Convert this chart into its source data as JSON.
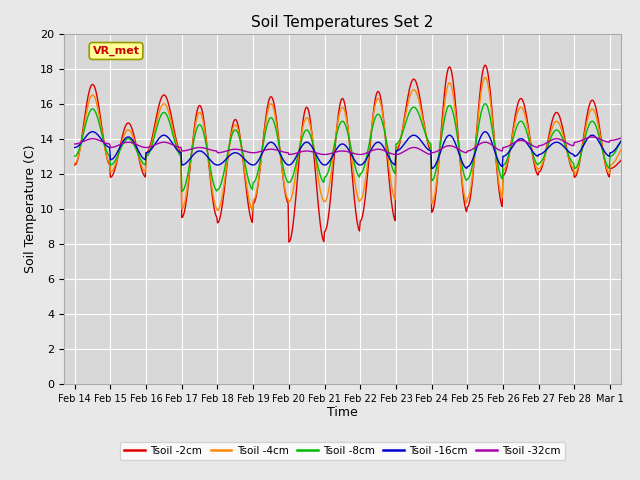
{
  "title": "Soil Temperatures Set 2",
  "xlabel": "Time",
  "ylabel": "Soil Temperature (C)",
  "ylim": [
    0,
    20
  ],
  "yticks": [
    0,
    2,
    4,
    6,
    8,
    10,
    12,
    14,
    16,
    18,
    20
  ],
  "fig_bg_color": "#e8e8e8",
  "plot_bg_color": "#d8d8d8",
  "annotation_text": "VR_met",
  "annotation_color": "#cc0000",
  "annotation_bg": "#ffff99",
  "annotation_border": "#999900",
  "colors": {
    "Tsoil -2cm": "#dd0000",
    "Tsoil -4cm": "#ff8800",
    "Tsoil -8cm": "#00bb00",
    "Tsoil -16cm": "#0000cc",
    "Tsoil -32cm": "#aa00aa"
  },
  "n_days": 16,
  "start_day": 14,
  "series": {
    "Tsoil -2cm": {
      "daily_min": [
        12.5,
        11.8,
        13.2,
        9.5,
        9.2,
        10.3,
        8.1,
        8.7,
        9.3,
        13.3,
        9.8,
        10.1,
        11.9,
        12.1,
        11.8,
        12.3
      ],
      "daily_max": [
        17.1,
        14.9,
        16.5,
        15.9,
        15.1,
        16.4,
        15.8,
        16.3,
        16.7,
        17.4,
        18.1,
        18.2,
        16.3,
        15.5,
        16.2,
        13.0
      ]
    },
    "Tsoil -4cm": {
      "daily_min": [
        12.6,
        12.1,
        13.1,
        10.0,
        9.9,
        10.5,
        10.4,
        10.4,
        10.5,
        13.5,
        10.3,
        10.6,
        12.2,
        12.3,
        12.0,
        12.5
      ],
      "daily_max": [
        16.5,
        14.5,
        16.0,
        15.5,
        14.8,
        16.0,
        15.2,
        15.8,
        16.3,
        16.8,
        17.2,
        17.5,
        15.8,
        15.0,
        15.7,
        13.8
      ]
    },
    "Tsoil -8cm": {
      "daily_min": [
        13.0,
        12.5,
        13.0,
        11.0,
        11.1,
        11.5,
        11.5,
        11.8,
        12.0,
        13.7,
        11.6,
        11.7,
        12.5,
        12.6,
        12.3,
        13.0
      ],
      "daily_max": [
        15.7,
        14.0,
        15.5,
        14.8,
        14.5,
        15.2,
        14.5,
        15.0,
        15.4,
        15.8,
        15.9,
        16.0,
        15.0,
        14.5,
        15.0,
        14.3
      ]
    },
    "Tsoil -16cm": {
      "daily_min": [
        13.5,
        12.8,
        13.2,
        12.5,
        12.5,
        12.5,
        12.5,
        12.5,
        12.5,
        13.3,
        12.3,
        12.4,
        13.0,
        13.1,
        13.0,
        13.2
      ],
      "daily_max": [
        14.4,
        14.1,
        14.2,
        13.3,
        13.2,
        13.8,
        13.8,
        13.7,
        13.8,
        14.2,
        14.2,
        14.4,
        14.0,
        13.8,
        14.2,
        14.2
      ]
    },
    "Tsoil -32cm": {
      "daily_min": [
        13.7,
        13.5,
        13.5,
        13.3,
        13.2,
        13.2,
        13.1,
        13.1,
        13.1,
        13.1,
        13.2,
        13.3,
        13.5,
        13.6,
        13.8,
        13.9
      ],
      "daily_max": [
        14.0,
        13.8,
        13.8,
        13.5,
        13.4,
        13.4,
        13.3,
        13.3,
        13.4,
        13.5,
        13.6,
        13.8,
        13.9,
        14.0,
        14.1,
        14.1
      ]
    }
  }
}
